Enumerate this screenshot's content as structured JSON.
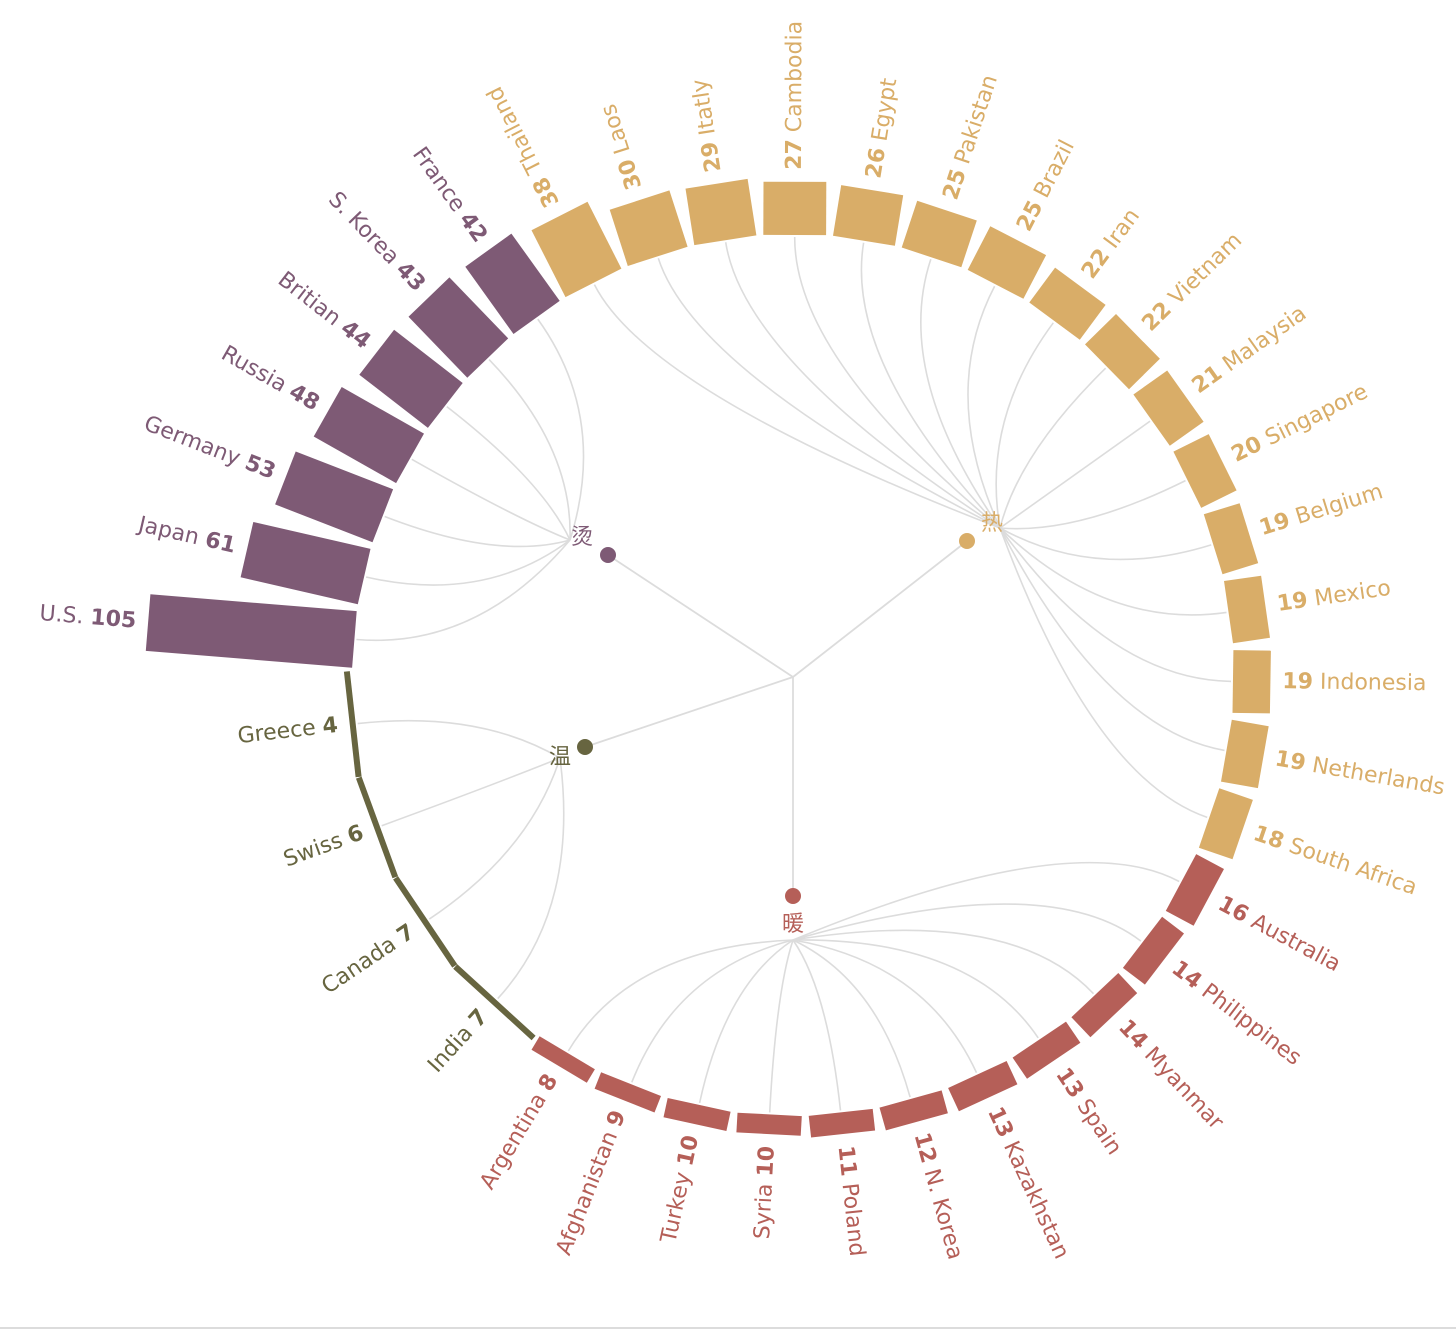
{
  "chart_data": {
    "type": "radial-bar",
    "title": "",
    "groups": [
      {
        "key": "tang",
        "label": "烫",
        "color": "#7e5a75",
        "items": [
          {
            "name": "U.S.",
            "value": 105
          },
          {
            "name": "Japan",
            "value": 61
          },
          {
            "name": "Germany",
            "value": 53
          },
          {
            "name": "Russia",
            "value": 48
          },
          {
            "name": "Britian",
            "value": 44
          },
          {
            "name": "S. Korea",
            "value": 43
          },
          {
            "name": "France",
            "value": 42
          }
        ]
      },
      {
        "key": "re",
        "label": "热",
        "color": "#d9ad68",
        "items": [
          {
            "name": "Thailand",
            "value": 38
          },
          {
            "name": "Laos",
            "value": 30
          },
          {
            "name": "Itatly",
            "value": 29
          },
          {
            "name": "Cambodia",
            "value": 27
          },
          {
            "name": "Egypt",
            "value": 26
          },
          {
            "name": "Pakistan",
            "value": 25
          },
          {
            "name": "Brazil",
            "value": 25
          },
          {
            "name": "Iran",
            "value": 22
          },
          {
            "name": "Vietnam",
            "value": 22
          },
          {
            "name": "Malaysia",
            "value": 21
          },
          {
            "name": "Singapore",
            "value": 20
          },
          {
            "name": "Belgium",
            "value": 19
          },
          {
            "name": "Mexico",
            "value": 19
          },
          {
            "name": "Indonesia",
            "value": 19
          },
          {
            "name": "Netherlands",
            "value": 19
          },
          {
            "name": "South Africa",
            "value": 18
          }
        ]
      },
      {
        "key": "nuan",
        "label": "暖",
        "color": "#b55f58",
        "items": [
          {
            "name": "Australia",
            "value": 16
          },
          {
            "name": "Philippines",
            "value": 14
          },
          {
            "name": "Myanmar",
            "value": 14
          },
          {
            "name": "Spain",
            "value": 13
          },
          {
            "name": "Kazakhstan",
            "value": 13
          },
          {
            "name": "N. Korea",
            "value": 12
          },
          {
            "name": "Poland",
            "value": 11
          },
          {
            "name": "Syria",
            "value": 10
          },
          {
            "name": "Turkey",
            "value": 10
          },
          {
            "name": "Afghanistan",
            "value": 9
          },
          {
            "name": "Argentina",
            "value": 8
          }
        ]
      },
      {
        "key": "wen",
        "label": "温",
        "color": "#676540",
        "items": [
          {
            "name": "India",
            "value": 7
          },
          {
            "name": "Canada",
            "value": 7
          },
          {
            "name": "Swiss",
            "value": 6
          },
          {
            "name": "Greece",
            "value": 4
          }
        ]
      }
    ]
  }
}
